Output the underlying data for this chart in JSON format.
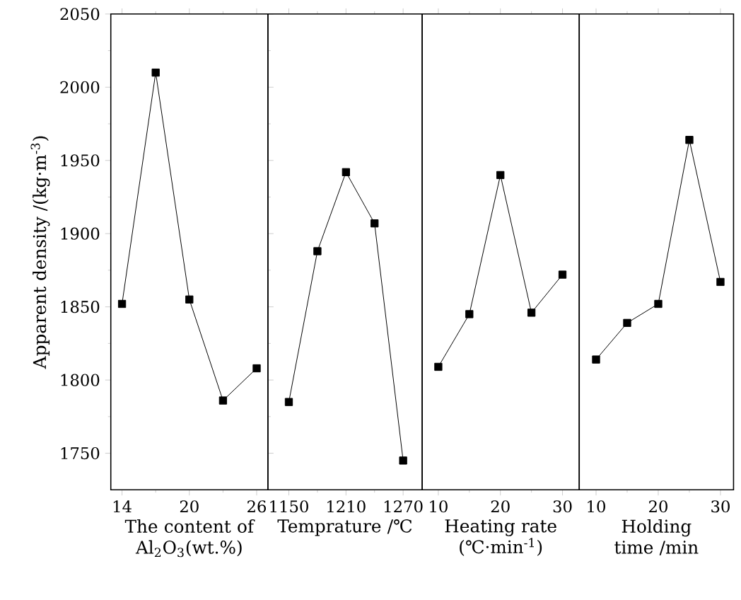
{
  "chart_data": [
    {
      "type": "line",
      "ylabel": "Apparent density /(kg·m$^{-3}$)",
      "xlabel": "The content of Al$_{2}$O$_{3}$(wt.%)",
      "x": [
        14,
        17,
        20,
        23,
        26
      ],
      "xlim": [
        13,
        27
      ],
      "xticks": [
        14,
        20,
        26
      ],
      "ylim": [
        1725,
        2050
      ],
      "yticks": [
        1750,
        1800,
        1850,
        1900,
        1950,
        2000,
        2050
      ],
      "marker": "square",
      "line_style": "solid",
      "series": [
        {
          "color": "#000000",
          "values": [
            1852,
            2010,
            1855,
            1786,
            1808
          ]
        }
      ]
    },
    {
      "type": "line",
      "xlabel": "Temprature /℃",
      "x": [
        1150,
        1180,
        1210,
        1240,
        1270
      ],
      "xlim": [
        1128,
        1290
      ],
      "xticks": [
        1150,
        1210,
        1270
      ],
      "ylim": [
        1725,
        2050
      ],
      "yticks": [
        1750,
        1800,
        1850,
        1900,
        1950,
        2000,
        2050
      ],
      "tick_labels": "x",
      "marker": "square",
      "line_style": "solid",
      "series": [
        {
          "color": "#000000",
          "values": [
            1785,
            1888,
            1942,
            1907,
            1745
          ]
        }
      ]
    },
    {
      "type": "line",
      "xlabel": "Heating rate (℃·min$^{-1}$)",
      "x": [
        10,
        15,
        20,
        25,
        30
      ],
      "xlim": [
        7.4,
        32.7
      ],
      "xticks": [
        10,
        20,
        30
      ],
      "ylim": [
        1725,
        2050
      ],
      "yticks": [
        1750,
        1800,
        1850,
        1900,
        1950,
        2000,
        2050
      ],
      "tick_labels": "x",
      "marker": "square",
      "line_style": "solid",
      "series": [
        {
          "color": "#000000",
          "values": [
            1809,
            1845,
            1940,
            1846,
            1872
          ]
        }
      ]
    },
    {
      "type": "line",
      "xlabel": "Holding time /min",
      "x": [
        10,
        15,
        20,
        25,
        30
      ],
      "xlim": [
        7.3,
        32.1
      ],
      "xticks": [
        10,
        20,
        30
      ],
      "ylim": [
        1725,
        2050
      ],
      "yticks": [
        1750,
        1800,
        1850,
        1900,
        1950,
        2000,
        2050
      ],
      "tick_labels": "x",
      "marker": "square",
      "line_style": "solid",
      "series": [
        {
          "color": "#000000",
          "values": [
            1814,
            1839,
            1852,
            1964,
            1867
          ]
        }
      ]
    }
  ]
}
